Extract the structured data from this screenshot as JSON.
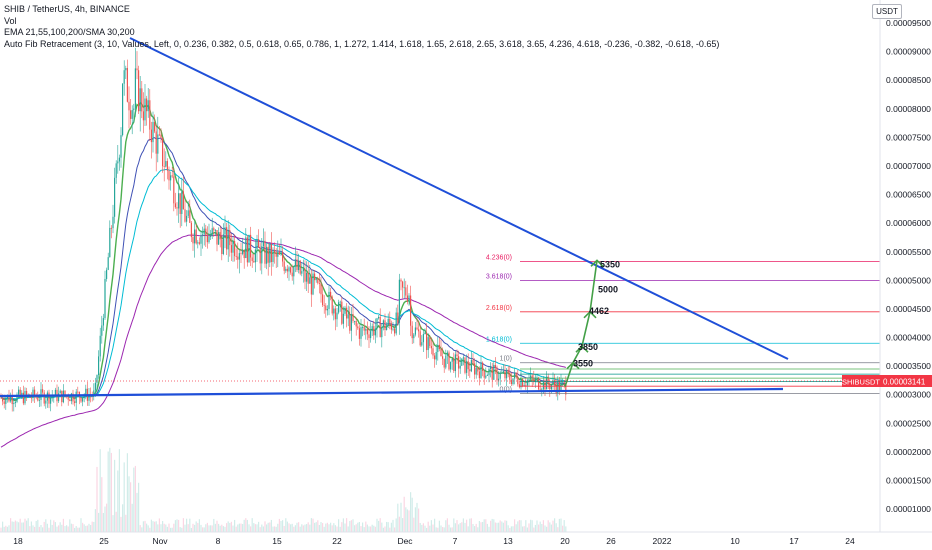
{
  "header": {
    "symbol_line": "SHIB / TetherUS, 4h, BINANCE",
    "vol_label": "Vol",
    "ema_label": "EMA 21,55,100,200/SMA 30,200",
    "fib_indicator_label": "Auto Fib Retracement (3, 10, Values, Left, 0, 0.236, 0.382, 0.5, 0.618, 0.65, 0.786, 1, 1.272, 1.414, 1.618, 1.65, 2.618, 2.65, 3.618, 3.65, 4.236, 4.618, -0.236, -0.382, -0.618, -0.65)",
    "quote_currency": "USDT"
  },
  "price_axis": {
    "ticks": [
      "0.00009500",
      "0.00009000",
      "0.00008500",
      "0.00008000",
      "0.00007500",
      "0.00007000",
      "0.00006500",
      "0.00006000",
      "0.00005500",
      "0.00005000",
      "0.00004500",
      "0.00004000",
      "0.00003500",
      "0.00003000",
      "0.00002500",
      "0.00002000",
      "0.00001500",
      "0.00001000"
    ],
    "current_symbol": "SHIBUSDT",
    "current_price": "0.00003141",
    "current_color": "#f23645"
  },
  "time_axis": {
    "ticks": [
      "18",
      "25",
      "Nov",
      "8",
      "15",
      "22",
      "Dec",
      "7",
      "13",
      "20",
      "26",
      "2022",
      "10",
      "17",
      "24"
    ]
  },
  "fib_levels": [
    {
      "label": "4.236(0)",
      "value": 5.33e-05,
      "color": "#e91e63"
    },
    {
      "label": "3.618(0)",
      "value": 5e-05,
      "color": "#9c27b0"
    },
    {
      "label": "2.618(0)",
      "value": 4.45e-05,
      "color": "#f23645"
    },
    {
      "label": "1.618(0)",
      "value": 3.9e-05,
      "color": "#00bcd4"
    },
    {
      "label": "1(0)",
      "value": 3.56e-05,
      "color": "#787b86"
    },
    {
      "label": "0.786(0)",
      "value": 3.45e-05,
      "color": "#4caf50"
    },
    {
      "label": "0.618(0)",
      "value": 3.36e-05,
      "color": "#009688"
    },
    {
      "label": "0.5(0)",
      "value": 3.29e-05,
      "color": "#4caf50"
    },
    {
      "label": "0.382(0)",
      "value": 3.23e-05,
      "color": "#009688"
    },
    {
      "label": "0.236(0)",
      "value": 3.15e-05,
      "color": "#f23645"
    },
    {
      "label": "0(0)",
      "value": 3.02e-05,
      "color": "#787b86"
    }
  ],
  "annotations": [
    {
      "text": "3550",
      "price": 3.56e-05
    },
    {
      "text": "3850",
      "price": 3.85e-05
    },
    {
      "text": "4462",
      "price": 4.45e-05
    },
    {
      "text": "5000",
      "price": 5e-05
    },
    {
      "text": "5350",
      "price": 5.35e-05
    }
  ],
  "chart_data": {
    "type": "line",
    "title": "SHIB / TetherUS, 4h, BINANCE",
    "ylim": [
      6e-06,
      9.85e-05
    ],
    "trendlines": [
      {
        "name": "upper-trendline",
        "color": "#1f4fd8"
      },
      {
        "name": "support-line",
        "color": "#1f4fd8"
      }
    ],
    "price_path": {
      "x_labels": [
        "18",
        "25",
        "Nov",
        "8",
        "15",
        "22",
        "Dec",
        "7",
        "13",
        "20"
      ],
      "values": [
        2.95e-05,
        3e-05,
        8.8e-05,
        5.9e-05,
        5.3e-05,
        4.1e-05,
        4.3e-05,
        3.6e-05,
        3.3e-05,
        3.14e-05
      ]
    },
    "ema_series": [
      {
        "color": "#4caf50"
      },
      {
        "color": "#3f51b5"
      },
      {
        "color": "#00bcd4"
      },
      {
        "color": "#9c27b0"
      }
    ],
    "projection_path": [
      3.14e-05,
      3.56e-05,
      3.85e-05,
      4.45e-05,
      5.35e-05
    ]
  }
}
